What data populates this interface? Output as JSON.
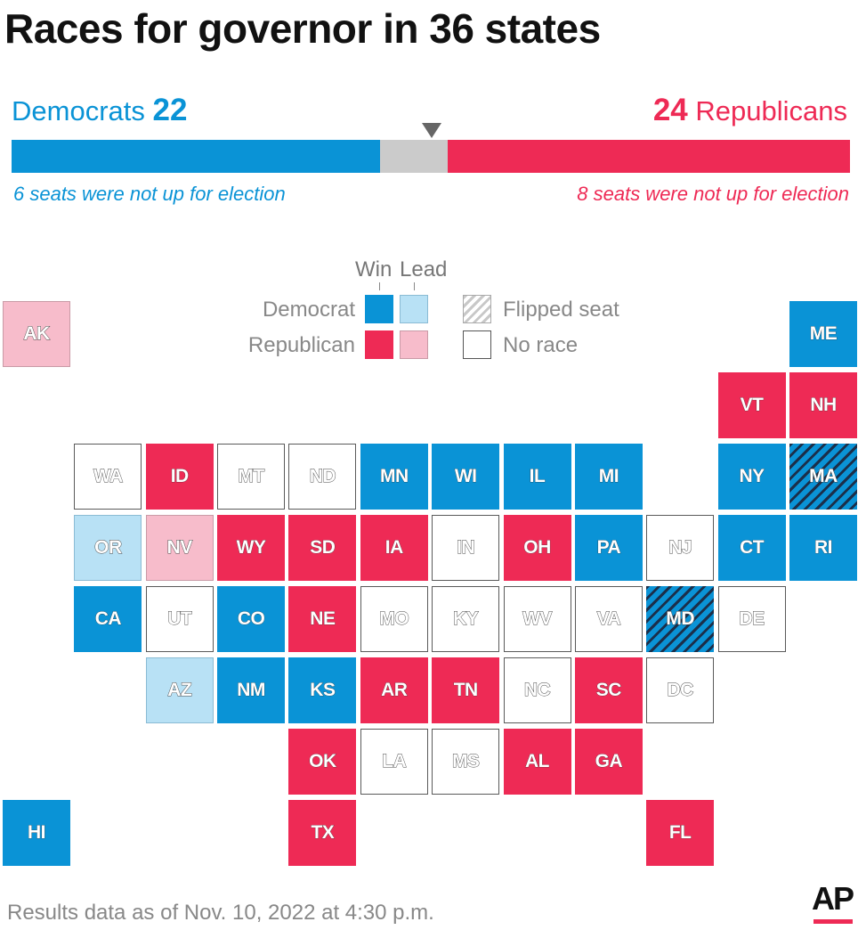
{
  "title": "Races for governor in 36 states",
  "seat_bar": {
    "democrats_label": "Democrats",
    "democrats_count": "22",
    "republicans_label": "Republicans",
    "republicans_count": "24",
    "dem_note": "6 seats were not up for election",
    "rep_note": "8 seats were not up for election",
    "dem_seats": 22,
    "undecided_seats": 4,
    "rep_seats": 24,
    "colors": {
      "dem": "#0a93d6",
      "undecided": "#cbcbcb",
      "rep": "#ee2a55",
      "marker": "#666666"
    }
  },
  "legend": {
    "win": "Win",
    "lead": "Lead",
    "democrat": "Democrat",
    "republican": "Republican",
    "flipped": "Flipped seat",
    "no_race": "No race"
  },
  "colors": {
    "dem_win": "#0a93d6",
    "dem_lead": "#b8e1f5",
    "rep_win": "#ee2a55",
    "rep_lead": "#f7bccb",
    "no_race": "#ffffff",
    "flip_stripe": "#1b2f4a"
  },
  "states": [
    {
      "abbr": "AK",
      "status": "rep-lead"
    },
    {
      "abbr": "ME",
      "status": "dem-win"
    },
    {
      "abbr": "VT",
      "status": "rep-win"
    },
    {
      "abbr": "NH",
      "status": "rep-win"
    },
    {
      "abbr": "WA",
      "status": "no-race"
    },
    {
      "abbr": "ID",
      "status": "rep-win"
    },
    {
      "abbr": "MT",
      "status": "no-race"
    },
    {
      "abbr": "ND",
      "status": "no-race"
    },
    {
      "abbr": "MN",
      "status": "dem-win"
    },
    {
      "abbr": "WI",
      "status": "dem-win"
    },
    {
      "abbr": "IL",
      "status": "dem-win"
    },
    {
      "abbr": "MI",
      "status": "dem-win"
    },
    {
      "abbr": "NY",
      "status": "dem-win"
    },
    {
      "abbr": "MA",
      "status": "flip-dem"
    },
    {
      "abbr": "OR",
      "status": "dem-lead"
    },
    {
      "abbr": "NV",
      "status": "rep-lead"
    },
    {
      "abbr": "WY",
      "status": "rep-win"
    },
    {
      "abbr": "SD",
      "status": "rep-win"
    },
    {
      "abbr": "IA",
      "status": "rep-win"
    },
    {
      "abbr": "IN",
      "status": "no-race"
    },
    {
      "abbr": "OH",
      "status": "rep-win"
    },
    {
      "abbr": "PA",
      "status": "dem-win"
    },
    {
      "abbr": "NJ",
      "status": "no-race"
    },
    {
      "abbr": "CT",
      "status": "dem-win"
    },
    {
      "abbr": "RI",
      "status": "dem-win"
    },
    {
      "abbr": "CA",
      "status": "dem-win"
    },
    {
      "abbr": "UT",
      "status": "no-race"
    },
    {
      "abbr": "CO",
      "status": "dem-win"
    },
    {
      "abbr": "NE",
      "status": "rep-win"
    },
    {
      "abbr": "MO",
      "status": "no-race"
    },
    {
      "abbr": "KY",
      "status": "no-race"
    },
    {
      "abbr": "WV",
      "status": "no-race"
    },
    {
      "abbr": "VA",
      "status": "no-race"
    },
    {
      "abbr": "MD",
      "status": "flip-dem"
    },
    {
      "abbr": "DE",
      "status": "no-race"
    },
    {
      "abbr": "AZ",
      "status": "dem-lead"
    },
    {
      "abbr": "NM",
      "status": "dem-win"
    },
    {
      "abbr": "KS",
      "status": "dem-win"
    },
    {
      "abbr": "AR",
      "status": "rep-win"
    },
    {
      "abbr": "TN",
      "status": "rep-win"
    },
    {
      "abbr": "NC",
      "status": "no-race"
    },
    {
      "abbr": "SC",
      "status": "rep-win"
    },
    {
      "abbr": "DC",
      "status": "no-race"
    },
    {
      "abbr": "OK",
      "status": "rep-win"
    },
    {
      "abbr": "LA",
      "status": "no-race"
    },
    {
      "abbr": "MS",
      "status": "no-race"
    },
    {
      "abbr": "AL",
      "status": "rep-win"
    },
    {
      "abbr": "GA",
      "status": "rep-win"
    },
    {
      "abbr": "HI",
      "status": "dem-win"
    },
    {
      "abbr": "TX",
      "status": "rep-win"
    },
    {
      "abbr": "FL",
      "status": "rep-win"
    }
  ],
  "footer": "Results data as of Nov. 10, 2022 at 4:30 p.m.",
  "logo": "AP"
}
